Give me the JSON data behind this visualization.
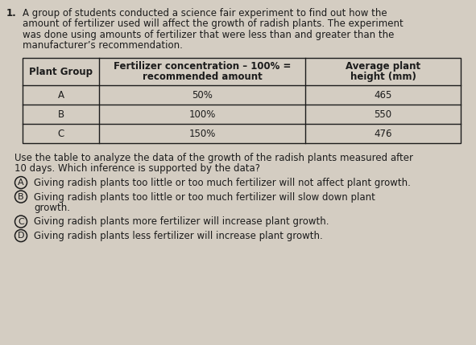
{
  "bg_color": "#d4cdc2",
  "number": "1.",
  "para_lines": [
    "A group of students conducted a science fair experiment to find out how the",
    "amount of fertilizer used will affect the growth of radish plants. The experiment",
    "was done using amounts of fertilizer that were less than and greater than the",
    "manufacturer’s recommendation."
  ],
  "table_headers": [
    "Plant Group",
    "Fertilizer concentration – 100% =\nrecommended amount",
    "Average plant\nheight (mm)"
  ],
  "table_rows": [
    [
      "A",
      "50%",
      "465"
    ],
    [
      "B",
      "100%",
      "550"
    ],
    [
      "C",
      "150%",
      "476"
    ]
  ],
  "question_lines": [
    "Use the table to analyze the data of the growth of the radish plants measured after",
    "10 days. Which inference is supported by the data?"
  ],
  "choices": [
    {
      "label": "A",
      "lines": [
        "Giving radish plants too little or too much fertilizer will not affect plant growth."
      ]
    },
    {
      "label": "B",
      "lines": [
        "Giving radish plants too little or too much fertilizer will slow down plant",
        "growth."
      ]
    },
    {
      "label": "C",
      "lines": [
        "Giving radish plants more fertilizer will increase plant growth."
      ]
    },
    {
      "label": "D",
      "lines": [
        "Giving radish plants less fertilizer will increase plant growth."
      ]
    }
  ],
  "text_color": "#1c1c1c",
  "fs": 8.5,
  "lh": 13.5
}
